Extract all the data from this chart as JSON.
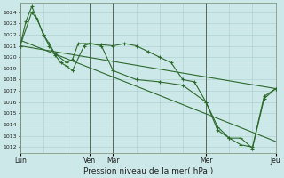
{
  "background_color": "#cce8e8",
  "grid_color": "#aacccc",
  "line_color": "#2d6a2d",
  "title": "Pression niveau de la mer( hPa )",
  "ylim": [
    1011.5,
    1024.8
  ],
  "yticks": [
    1012,
    1013,
    1014,
    1015,
    1016,
    1017,
    1018,
    1019,
    1020,
    1021,
    1022,
    1023,
    1024
  ],
  "xlim": [
    0,
    264
  ],
  "day_positions": [
    0,
    72,
    96,
    192,
    264
  ],
  "day_labels": [
    "Lun",
    "Ven",
    "Mar",
    "Mer",
    "Jeu"
  ],
  "straight_line1_x": [
    0,
    264
  ],
  "straight_line1_y": [
    1021.0,
    1017.2
  ],
  "straight_line2_x": [
    0,
    264
  ],
  "straight_line2_y": [
    1021.5,
    1012.5
  ],
  "zigzag1_x": [
    0,
    12,
    18,
    24,
    30,
    36,
    48,
    54,
    60,
    72,
    84,
    96,
    108,
    120,
    132,
    144,
    156,
    168,
    180,
    192,
    204,
    216,
    228,
    240,
    252,
    264
  ],
  "zigzag1_y": [
    1021.0,
    1024.0,
    1023.3,
    1022.0,
    1021.2,
    1020.3,
    1019.5,
    1019.8,
    1021.2,
    1021.2,
    1021.1,
    1021.0,
    1021.2,
    1021.0,
    1020.5,
    1020.0,
    1019.5,
    1018.0,
    1017.8,
    1016.0,
    1013.8,
    1012.8,
    1012.8,
    1011.9,
    1016.3,
    1017.2
  ],
  "zigzag2_x": [
    0,
    6,
    12,
    18,
    24,
    30,
    36,
    42,
    48,
    54,
    66,
    72,
    84,
    96,
    120,
    144,
    168,
    192,
    204,
    216,
    228,
    240,
    252,
    264
  ],
  "zigzag2_y": [
    1021.0,
    1023.2,
    1024.5,
    1023.3,
    1022.0,
    1021.0,
    1020.2,
    1019.5,
    1019.2,
    1018.8,
    1021.0,
    1021.2,
    1021.0,
    1018.8,
    1018.0,
    1017.8,
    1017.5,
    1016.0,
    1013.5,
    1012.8,
    1012.2,
    1012.0,
    1016.5,
    1017.2
  ]
}
